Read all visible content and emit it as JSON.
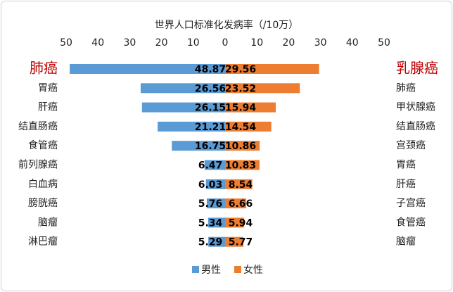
{
  "chart_data": {
    "type": "butterfly",
    "title": "世界人口标准化发病率（/10万）",
    "xlim": [
      0,
      50
    ],
    "xticks": [
      0,
      10,
      20,
      30,
      40,
      50
    ],
    "highlight_color": "#c00000",
    "series": [
      {
        "name": "男性",
        "color": "#5b9bd5",
        "categories": [
          "肺癌",
          "胃癌",
          "肝癌",
          "结直肠癌",
          "食管癌",
          "前列腺癌",
          "白血病",
          "膀胱癌",
          "脑瘤",
          "淋巴瘤"
        ],
        "values": [
          48.87,
          26.56,
          26.15,
          21.21,
          16.75,
          6.47,
          6.03,
          5.76,
          5.34,
          5.29
        ]
      },
      {
        "name": "女性",
        "color": "#ed7d31",
        "categories": [
          "乳腺癌",
          "肺癌",
          "甲状腺癌",
          "结直肠癌",
          "宫颈癌",
          "胃癌",
          "肝癌",
          "子宫癌",
          "食管癌",
          "脑瘤"
        ],
        "values": [
          29.56,
          23.52,
          15.94,
          14.54,
          10.86,
          10.83,
          8.54,
          6.66,
          5.94,
          5.77
        ]
      }
    ]
  }
}
